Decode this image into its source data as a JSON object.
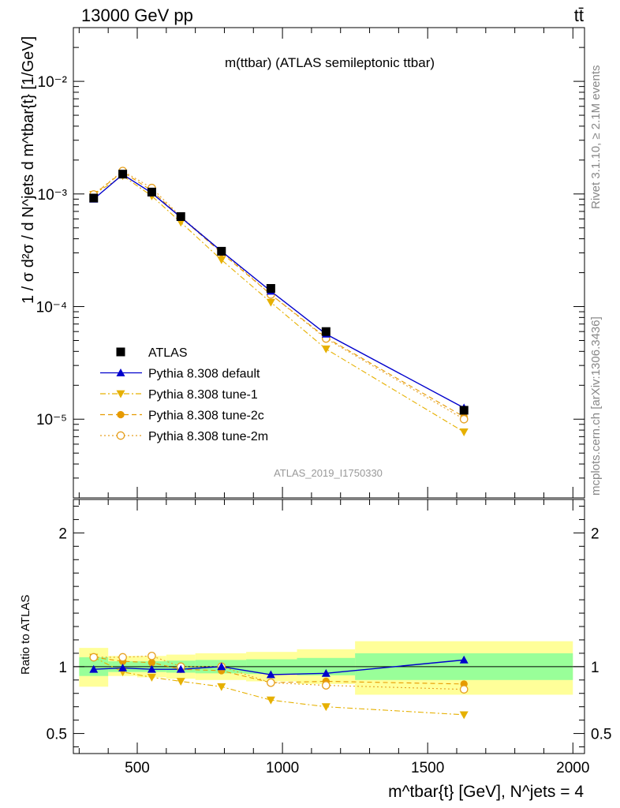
{
  "header": {
    "energy_label": "13000 GeV pp",
    "process_label": "tt̄"
  },
  "side": {
    "rivet_label": "Rivet 3.1.10, ≥ 2.1M events",
    "mcplots_label": "mcplots.cern.ch [arXiv:1306.3436]"
  },
  "colors": {
    "atlas": "#000000",
    "default": "#0000cc",
    "tune1": "#e6b000",
    "tune2c": "#e69a00",
    "tune2m": "#e6a020",
    "band_inner": "#99ff99",
    "band_outer": "#ffff99"
  },
  "chart_data": [
    {
      "type": "line",
      "title": "m(ttbar) (ATLAS semileptonic ttbar)",
      "analysis_label": "ATLAS_2019_I1750330",
      "ylabel": "1 / σ d²σ / d N^jets d m^tbar{t} [1/GeV]",
      "yscale": "log",
      "ylim": [
        2e-06,
        0.03
      ],
      "xlim": [
        280,
        2040
      ],
      "ytick_labels": [
        "10⁻⁵",
        "10⁻⁴",
        "10⁻³",
        "10⁻²"
      ],
      "x": [
        350,
        450,
        550,
        650,
        790,
        960,
        1150,
        1625
      ],
      "series": [
        {
          "name": "ATLAS",
          "key": "atlas",
          "marker": "square",
          "values": [
            0.00092,
            0.0015,
            0.00104,
            0.00063,
            0.00031,
            0.000145,
            6e-05,
            1.2e-05
          ]
        },
        {
          "name": "Pythia 8.308 default",
          "key": "default",
          "marker": "triangle-up",
          "line": "solid",
          "values": [
            0.0009,
            0.00149,
            0.00102,
            0.00062,
            0.00031,
            0.000137,
            5.7e-05,
            1.26e-05
          ]
        },
        {
          "name": "Pythia 8.308 tune-1",
          "key": "tune1",
          "marker": "triangle-down",
          "line": "dashdot",
          "values": [
            0.00099,
            0.00145,
            0.00096,
            0.00056,
            0.00026,
            0.000109,
            4.2e-05,
            7.7e-06
          ]
        },
        {
          "name": "Pythia 8.308 tune-2c",
          "key": "tune2c",
          "marker": "circle",
          "line": "dashed",
          "values": [
            0.00099,
            0.00157,
            0.00107,
            0.00062,
            0.0003,
            0.000128,
            5.3e-05,
            1.05e-05
          ]
        },
        {
          "name": "Pythia 8.308 tune-2m",
          "key": "tune2m",
          "marker": "open-circle",
          "line": "dotted",
          "values": [
            0.00099,
            0.0016,
            0.00113,
            0.00063,
            0.00031,
            0.000128,
            5.2e-05,
            1e-05
          ]
        }
      ]
    },
    {
      "type": "line",
      "ylabel": "Ratio to ATLAS",
      "xlabel": "m^tbar{t} [GeV], N^jets = 4",
      "xlim": [
        280,
        2040
      ],
      "ylim": [
        0.35,
        2.25
      ],
      "yticks": [
        0.5,
        1,
        2
      ],
      "ytick_labels": [
        "0.5",
        "1",
        "2"
      ],
      "xticks": [
        500,
        1000,
        1500,
        2000
      ],
      "xtick_labels": [
        "500",
        "1000",
        "1500",
        "2000"
      ],
      "x": [
        350,
        450,
        550,
        650,
        790,
        960,
        1150,
        1625
      ],
      "uncertainty_bands": [
        {
          "x0": 300,
          "x1": 400,
          "outer": [
            0.85,
            1.14
          ],
          "inner": [
            0.93,
            1.07
          ]
        },
        {
          "x0": 400,
          "x1": 500,
          "outer": [
            0.93,
            1.08
          ],
          "inner": [
            0.96,
            1.04
          ]
        },
        {
          "x0": 500,
          "x1": 600,
          "outer": [
            0.92,
            1.08
          ],
          "inner": [
            0.96,
            1.04
          ]
        },
        {
          "x0": 600,
          "x1": 700,
          "outer": [
            0.91,
            1.09
          ],
          "inner": [
            0.955,
            1.045
          ]
        },
        {
          "x0": 700,
          "x1": 875,
          "outer": [
            0.9,
            1.1
          ],
          "inner": [
            0.95,
            1.05
          ]
        },
        {
          "x0": 875,
          "x1": 1050,
          "outer": [
            0.89,
            1.11
          ],
          "inner": [
            0.945,
            1.055
          ]
        },
        {
          "x0": 1050,
          "x1": 1250,
          "outer": [
            0.87,
            1.13
          ],
          "inner": [
            0.935,
            1.065
          ]
        },
        {
          "x0": 1250,
          "x1": 2000,
          "outer": [
            0.79,
            1.19
          ],
          "inner": [
            0.9,
            1.1
          ]
        }
      ],
      "series": [
        {
          "name": "Pythia 8.308 default",
          "key": "default",
          "marker": "triangle-up",
          "line": "solid",
          "values": [
            0.98,
            0.99,
            0.98,
            0.98,
            1.0,
            0.94,
            0.95,
            1.05
          ]
        },
        {
          "name": "Pythia 8.308 tune-1",
          "key": "tune1",
          "marker": "triangle-down",
          "line": "dashdot",
          "values": [
            1.07,
            0.96,
            0.92,
            0.89,
            0.85,
            0.75,
            0.7,
            0.64
          ]
        },
        {
          "name": "Pythia 8.308 tune-2c",
          "key": "tune2c",
          "marker": "circle",
          "line": "dashed",
          "values": [
            1.07,
            1.04,
            1.03,
            0.98,
            0.97,
            0.88,
            0.89,
            0.87
          ]
        },
        {
          "name": "Pythia 8.308 tune-2m",
          "key": "tune2m",
          "marker": "open-circle",
          "line": "dotted",
          "values": [
            1.07,
            1.07,
            1.08,
            1.0,
            1.0,
            0.88,
            0.86,
            0.83
          ]
        }
      ]
    }
  ]
}
